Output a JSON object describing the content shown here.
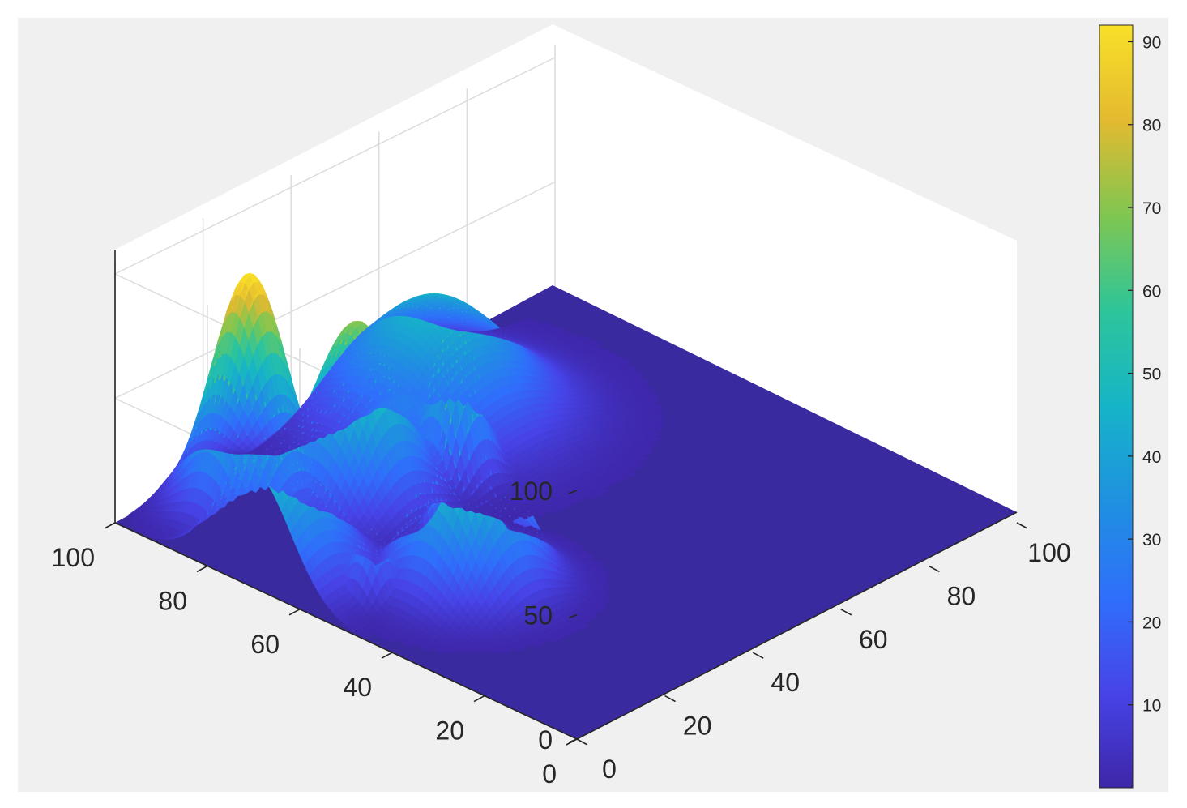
{
  "chart_data": {
    "type": "surface",
    "title": "",
    "xlabel": "",
    "ylabel": "",
    "zlabel": "",
    "xlim": [
      0,
      100
    ],
    "ylim": [
      0,
      100
    ],
    "zlim": [
      0,
      110
    ],
    "x_ticks": [
      "0",
      "20",
      "40",
      "60",
      "80",
      "100"
    ],
    "y_ticks": [
      "0",
      "20",
      "40",
      "60",
      "80",
      "100"
    ],
    "z_ticks": [
      "0",
      "50",
      "100"
    ],
    "grid": true,
    "colormap": "parula",
    "colorbar": {
      "location": "right",
      "range": [
        0,
        92
      ],
      "ticks": [
        "10",
        "20",
        "30",
        "40",
        "50",
        "60",
        "70",
        "80",
        "90"
      ],
      "colors": [
        "#3e26a8",
        "#4744e8",
        "#2f6ffb",
        "#1f91e0",
        "#16b4c8",
        "#2dc59a",
        "#7fc651",
        "#e3ba30",
        "#f9e028"
      ]
    },
    "peaks": [
      {
        "x": 18,
        "y": 88,
        "height": 95,
        "spread": 6
      },
      {
        "x": 5,
        "y": 70,
        "height": 58,
        "spread": 8
      },
      {
        "x": 32,
        "y": 78,
        "height": 72,
        "spread": 7
      },
      {
        "x": 34,
        "y": 57,
        "height": 83,
        "spread": 3
      },
      {
        "x": 24,
        "y": 46,
        "height": 75,
        "spread": 7
      },
      {
        "x": 10,
        "y": 54,
        "height": 30,
        "spread": 3
      },
      {
        "x": 10,
        "y": 71,
        "height": 28,
        "spread": 4
      },
      {
        "x": 60,
        "y": 88,
        "height": 48,
        "spread": 12
      },
      {
        "x": 48,
        "y": 72,
        "height": 65,
        "spread": 4
      },
      {
        "x": 45,
        "y": 80,
        "height": 28,
        "spread": 8
      },
      {
        "x": 15,
        "y": 90,
        "height": 22,
        "spread": 4
      }
    ]
  }
}
